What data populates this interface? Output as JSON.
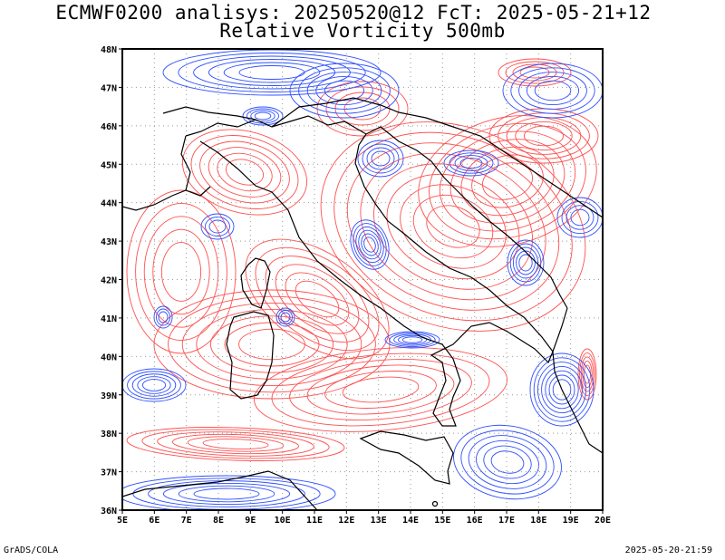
{
  "title_line1": "ECMWF0200 analisys: 20250520@12 FcT: 2025-05-21+12",
  "title_line2": "Relative Vorticity 500mb",
  "footer_left": "GrADS/COLA",
  "footer_right": "2025-05-20-21:59",
  "colors": {
    "positive_contour": "#ff5050",
    "negative_contour": "#3050ff",
    "coastline": "#000000",
    "grid": "#999999"
  },
  "map": {
    "lon_labels": [
      "5E",
      "6E",
      "7E",
      "8E",
      "9E",
      "10E",
      "11E",
      "12E",
      "13E",
      "14E",
      "15E",
      "16E",
      "17E",
      "18E",
      "19E",
      "20E"
    ],
    "lat_labels": [
      "48N",
      "47N",
      "46N",
      "45N",
      "44N",
      "43N",
      "42N",
      "41N",
      "40N",
      "39N",
      "38N",
      "37N",
      "36N"
    ],
    "lon_range": [
      5,
      20
    ],
    "lat_range": [
      36,
      48
    ],
    "grid": true
  }
}
